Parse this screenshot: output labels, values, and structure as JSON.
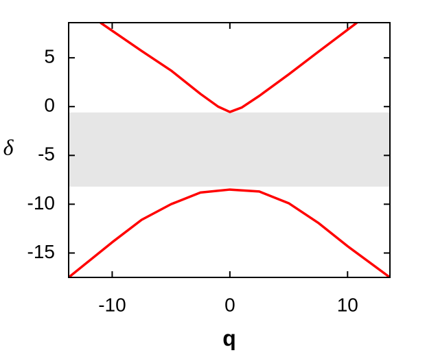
{
  "chart_data": {
    "type": "line",
    "x_label": "q",
    "y_label": "δ",
    "xlim": [
      -13.7,
      13.6
    ],
    "ylim": [
      -17.5,
      8.6
    ],
    "xticks": [
      -10,
      0,
      10
    ],
    "yticks": [
      5,
      0,
      -5,
      -10,
      -15
    ],
    "band": {
      "y": [
        -8.2,
        -0.6
      ],
      "color": "#e6e6e6"
    },
    "series": [
      {
        "color": "#ff0000",
        "x": [
          -11,
          -7.5,
          -5,
          -2.5,
          -1,
          0,
          1,
          2.5,
          5,
          7.5,
          10.8
        ],
        "values": [
          8.6,
          5.7,
          3.7,
          1.3,
          0,
          -0.55,
          -0.1,
          1.1,
          3.3,
          5.6,
          8.6
        ]
      },
      {
        "color": "#ff0000",
        "x": [
          -13.7,
          -10,
          -7.5,
          -5,
          -2.5,
          0,
          2.5,
          5,
          7.5,
          10,
          13.6
        ],
        "values": [
          -17.5,
          -13.9,
          -11.6,
          -10,
          -8.8,
          -8.5,
          -8.7,
          -9.9,
          -11.9,
          -14.3,
          -17.5
        ]
      }
    ]
  }
}
